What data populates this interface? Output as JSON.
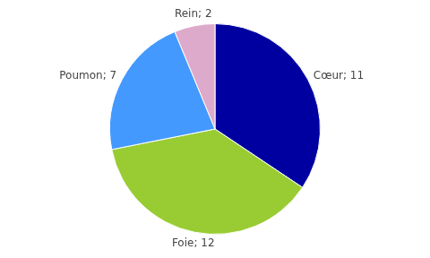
{
  "chart_data": {
    "type": "pie",
    "categories": [
      "Cœur",
      "Foie",
      "Poumon",
      "Rein"
    ],
    "values": [
      11,
      12,
      7,
      2
    ],
    "value_labels": [
      "Cœur; 11",
      "Foie; 12",
      "Poumon; 7",
      "Rein; 2"
    ],
    "colors": [
      "#0000A0",
      "#99CC33",
      "#4499FF",
      "#DDAACC"
    ],
    "data_labels": true,
    "legend": false
  }
}
